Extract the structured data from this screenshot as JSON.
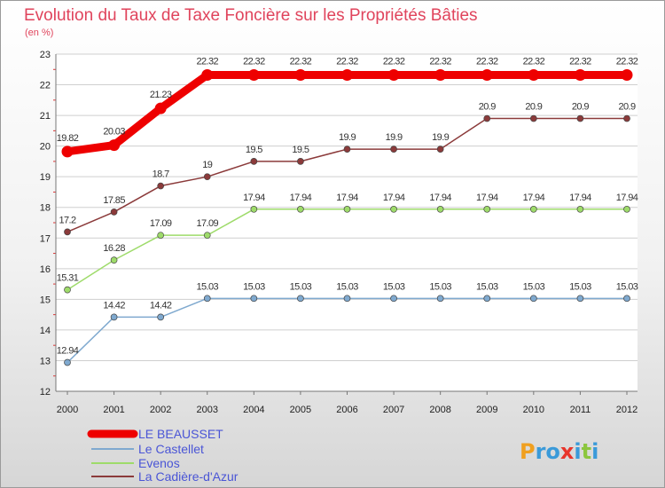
{
  "chart_data": {
    "type": "line",
    "title": "Evolution du Taux de Taxe Foncière sur les Propriétés Bâties",
    "subtitle": "(en %)",
    "xlabel": "",
    "ylabel": "",
    "ylim": [
      12,
      23
    ],
    "yticks": [
      "12",
      "13",
      "14",
      "15",
      "16",
      "17",
      "18",
      "19",
      "20",
      "21",
      "22",
      "23"
    ],
    "categories": [
      "2000",
      "2001",
      "2002",
      "2003",
      "2004",
      "2005",
      "2006",
      "2007",
      "2008",
      "2009",
      "2010",
      "2011",
      "2012"
    ],
    "grid": "horizontal",
    "series": [
      {
        "name": "LE BEAUSSET",
        "color": "#ee0000",
        "values": [
          19.82,
          20.03,
          21.23,
          22.32,
          22.32,
          22.32,
          22.32,
          22.32,
          22.32,
          22.32,
          22.32,
          22.32,
          22.32
        ],
        "labels": [
          "19.82",
          "20.03",
          "21.23",
          "22.32",
          "22.32",
          "22.32",
          "22.32",
          "22.32",
          "22.32",
          "22.32",
          "22.32",
          "22.32",
          "22.32"
        ]
      },
      {
        "name": "Le Castellet",
        "color": "#7fa9cf",
        "values": [
          12.94,
          14.42,
          14.42,
          15.03,
          15.03,
          15.03,
          15.03,
          15.03,
          15.03,
          15.03,
          15.03,
          15.03,
          15.03
        ],
        "labels": [
          "12.94",
          "14.42",
          "14.42",
          "15.03",
          "15.03",
          "15.03",
          "15.03",
          "15.03",
          "15.03",
          "15.03",
          "15.03",
          "15.03",
          "15.03"
        ]
      },
      {
        "name": "Evenos",
        "color": "#9edb6a",
        "values": [
          15.31,
          16.28,
          17.09,
          17.09,
          17.94,
          17.94,
          17.94,
          17.94,
          17.94,
          17.94,
          17.94,
          17.94,
          17.94
        ],
        "labels": [
          "15.31",
          "16.28",
          "17.09",
          "17.09",
          "17.94",
          "17.94",
          "17.94",
          "17.94",
          "17.94",
          "17.94",
          "17.94",
          "17.94",
          "17.94"
        ]
      },
      {
        "name": "La Cadière-d'Azur",
        "color": "#8b3a3a",
        "values": [
          17.2,
          17.85,
          18.7,
          19,
          19.5,
          19.5,
          19.9,
          19.9,
          19.9,
          20.9,
          20.9,
          20.9,
          20.9
        ],
        "labels": [
          "17.2",
          "17.85",
          "18.7",
          "19",
          "19.5",
          "19.5",
          "19.9",
          "19.9",
          "19.9",
          "20.9",
          "20.9",
          "20.9",
          "20.9"
        ]
      }
    ],
    "legend_position": "bottom-left"
  },
  "logo": {
    "text": "Proxiti"
  }
}
